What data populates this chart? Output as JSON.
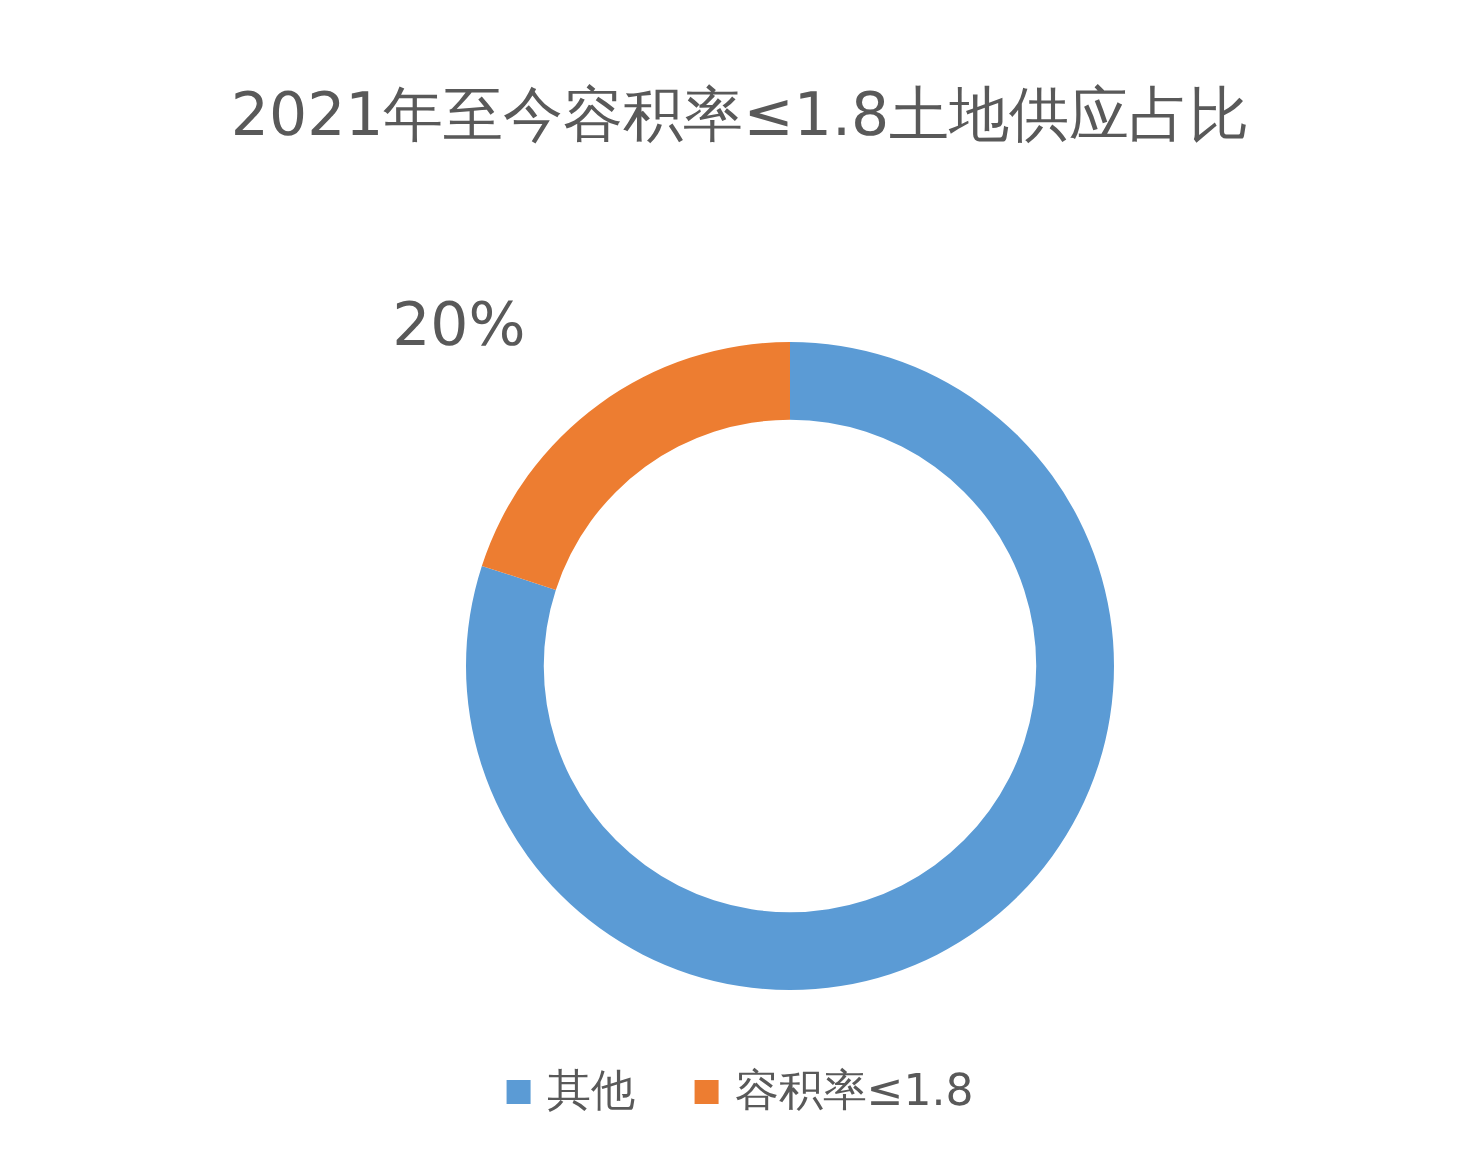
{
  "chart_data": {
    "type": "donut",
    "title": "2021年至今容积率≤1.8土地供应占比",
    "categories": [
      "其他",
      "容积率≤1.8"
    ],
    "values": [
      80,
      20
    ],
    "colors": [
      "#5b9bd5",
      "#ed7d31"
    ],
    "value_labels": [
      null,
      "20%"
    ],
    "legend": "bottom"
  }
}
